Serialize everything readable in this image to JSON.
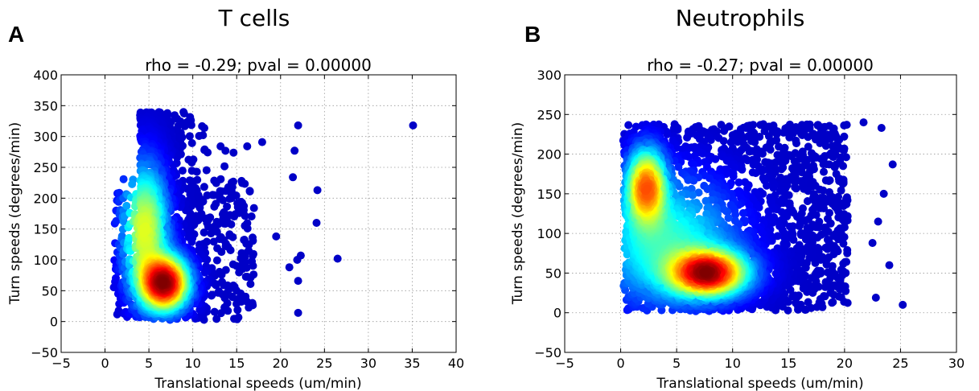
{
  "chart_data": [
    {
      "type": "scatter",
      "panel": "A",
      "suptitle": "T cells",
      "title": "rho = -0.29; pval = 0.00000",
      "xlabel": "Translational speeds (um/min)",
      "ylabel": "Turn speeds (degrees/min)",
      "xlim": [
        -5,
        40
      ],
      "ylim": [
        -50,
        400
      ],
      "xticks": [
        "−5",
        "0",
        "5",
        "10",
        "15",
        "20",
        "25",
        "30",
        "35",
        "40"
      ],
      "xtick_values": [
        -5,
        0,
        5,
        10,
        15,
        20,
        25,
        30,
        35,
        40
      ],
      "yticks": [
        "−50",
        "0",
        "50",
        "100",
        "150",
        "200",
        "250",
        "300",
        "350",
        "400"
      ],
      "ytick_values": [
        -50,
        0,
        50,
        100,
        150,
        200,
        250,
        300,
        350,
        400
      ],
      "grid": true,
      "colormap": "jet (point density)",
      "outlier_points": [
        [
          35.1,
          318
        ],
        [
          26.5,
          102
        ],
        [
          24.2,
          213
        ],
        [
          24.1,
          160
        ],
        [
          22.0,
          318
        ],
        [
          21.6,
          277
        ],
        [
          22.0,
          14
        ],
        [
          22.0,
          66
        ],
        [
          21.9,
          100
        ],
        [
          21.4,
          234
        ],
        [
          21.0,
          88
        ],
        [
          17.9,
          291
        ],
        [
          16.2,
          284
        ],
        [
          19.5,
          138
        ],
        [
          22.3,
          107
        ]
      ]
    },
    {
      "type": "scatter",
      "panel": "B",
      "suptitle": "Neutrophils",
      "title": "rho = -0.27; pval = 0.00000",
      "xlabel": "Translational speeds (um/min)",
      "ylabel": "Turn speeds (degrees/min)",
      "xlim": [
        -5,
        30
      ],
      "ylim": [
        -50,
        300
      ],
      "xticks": [
        "−5",
        "0",
        "5",
        "10",
        "15",
        "20",
        "25",
        "30"
      ],
      "xtick_values": [
        -5,
        0,
        5,
        10,
        15,
        20,
        25,
        30
      ],
      "yticks": [
        "−50",
        "0",
        "50",
        "100",
        "150",
        "200",
        "250",
        "300"
      ],
      "ytick_values": [
        -50,
        0,
        50,
        100,
        150,
        200,
        250,
        300
      ],
      "grid": true,
      "colormap": "jet (point density)",
      "outlier_points": [
        [
          25.2,
          10
        ],
        [
          24.3,
          187
        ],
        [
          23.3,
          233
        ],
        [
          22.8,
          19
        ],
        [
          21.7,
          240
        ],
        [
          20.2,
          237
        ],
        [
          24.0,
          60
        ],
        [
          23.5,
          150
        ],
        [
          23.0,
          115
        ],
        [
          22.5,
          88
        ]
      ]
    }
  ]
}
